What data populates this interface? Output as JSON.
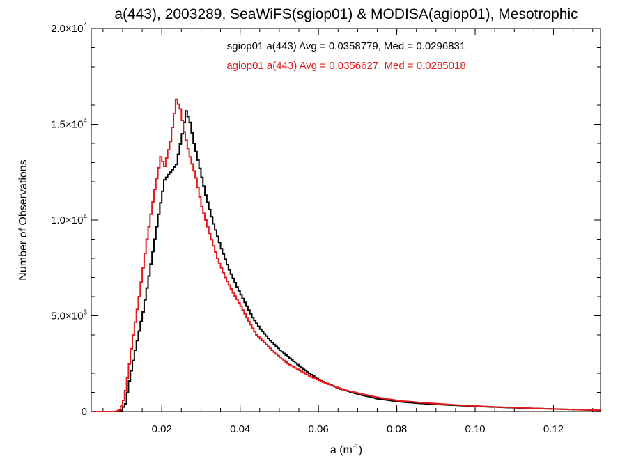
{
  "chart_data": {
    "type": "line",
    "title": "a(443), 2003289, SeaWiFS(sgiop01) & MODISA(agiop01), Mesotrophic",
    "xlabel_main": "a (m",
    "xlabel_sup": "-1",
    "xlabel_end": ")",
    "ylabel": "Number of Observations",
    "xlim": [
      0.002,
      0.132
    ],
    "ylim": [
      0,
      20000
    ],
    "x_ticks": [
      0.02,
      0.04,
      0.06,
      0.08,
      0.1,
      0.12
    ],
    "x_tick_labels": [
      "0.02",
      "0.04",
      "0.06",
      "0.08",
      "0.10",
      "0.12"
    ],
    "y_ticks": [
      {
        "value": 0,
        "mant": "0",
        "exp": ""
      },
      {
        "value": 5000,
        "mant": "5.0×10",
        "exp": "3"
      },
      {
        "value": 10000,
        "mant": "1.0×10",
        "exp": "4"
      },
      {
        "value": 15000,
        "mant": "1.5×10",
        "exp": "4"
      },
      {
        "value": 20000,
        "mant": "2.0×10",
        "exp": "4"
      }
    ],
    "grid": false,
    "series": [
      {
        "key": "sgiop01",
        "label": "sgiop01 a(443) Avg = 0.0358779, Med = 0.0296831",
        "color": "#000000",
        "points": [
          [
            0.002,
            0
          ],
          [
            0.008,
            0
          ],
          [
            0.0095,
            60
          ],
          [
            0.0105,
            400
          ],
          [
            0.0115,
            1600
          ],
          [
            0.013,
            3200
          ],
          [
            0.015,
            5200
          ],
          [
            0.017,
            7700
          ],
          [
            0.019,
            10300
          ],
          [
            0.0205,
            12100
          ],
          [
            0.022,
            12500
          ],
          [
            0.0235,
            12900
          ],
          [
            0.025,
            14500
          ],
          [
            0.026,
            15700
          ],
          [
            0.027,
            15100
          ],
          [
            0.028,
            14000
          ],
          [
            0.0295,
            12700
          ],
          [
            0.031,
            11300
          ],
          [
            0.033,
            9800
          ],
          [
            0.035,
            8500
          ],
          [
            0.037,
            7400
          ],
          [
            0.039,
            6500
          ],
          [
            0.041,
            5700
          ],
          [
            0.043,
            4900
          ],
          [
            0.045,
            4300
          ],
          [
            0.0475,
            3700
          ],
          [
            0.05,
            3200
          ],
          [
            0.053,
            2700
          ],
          [
            0.056,
            2200
          ],
          [
            0.06,
            1650
          ],
          [
            0.065,
            1200
          ],
          [
            0.07,
            900
          ],
          [
            0.075,
            660
          ],
          [
            0.08,
            520
          ],
          [
            0.085,
            430
          ],
          [
            0.09,
            370
          ],
          [
            0.095,
            320
          ],
          [
            0.1,
            270
          ],
          [
            0.105,
            230
          ],
          [
            0.11,
            190
          ],
          [
            0.115,
            160
          ],
          [
            0.12,
            130
          ],
          [
            0.125,
            100
          ],
          [
            0.13,
            70
          ],
          [
            0.132,
            60
          ]
        ]
      },
      {
        "key": "agiop01",
        "label": "agiop01 a(443) Avg = 0.0356627, Med = 0.0285018",
        "color": "#e31a1c",
        "points": [
          [
            0.002,
            0
          ],
          [
            0.008,
            0
          ],
          [
            0.0092,
            100
          ],
          [
            0.0102,
            700
          ],
          [
            0.0112,
            2000
          ],
          [
            0.0122,
            3600
          ],
          [
            0.014,
            6000
          ],
          [
            0.016,
            9000
          ],
          [
            0.018,
            11600
          ],
          [
            0.0195,
            13300
          ],
          [
            0.0205,
            12800
          ],
          [
            0.022,
            14100
          ],
          [
            0.0235,
            16300
          ],
          [
            0.0245,
            15800
          ],
          [
            0.0255,
            14600
          ],
          [
            0.027,
            13300
          ],
          [
            0.0285,
            12200
          ],
          [
            0.03,
            10700
          ],
          [
            0.032,
            9300
          ],
          [
            0.034,
            8000
          ],
          [
            0.036,
            7000
          ],
          [
            0.038,
            6200
          ],
          [
            0.04,
            5500
          ],
          [
            0.042,
            4700
          ],
          [
            0.044,
            4000
          ],
          [
            0.0465,
            3500
          ],
          [
            0.049,
            3000
          ],
          [
            0.052,
            2500
          ],
          [
            0.055,
            2150
          ],
          [
            0.058,
            1800
          ],
          [
            0.062,
            1450
          ],
          [
            0.066,
            1150
          ],
          [
            0.07,
            950
          ],
          [
            0.075,
            730
          ],
          [
            0.08,
            570
          ],
          [
            0.085,
            480
          ],
          [
            0.09,
            410
          ],
          [
            0.095,
            340
          ],
          [
            0.1,
            290
          ],
          [
            0.105,
            240
          ],
          [
            0.11,
            200
          ],
          [
            0.115,
            165
          ],
          [
            0.12,
            130
          ],
          [
            0.125,
            100
          ],
          [
            0.13,
            75
          ],
          [
            0.132,
            65
          ]
        ]
      }
    ]
  }
}
